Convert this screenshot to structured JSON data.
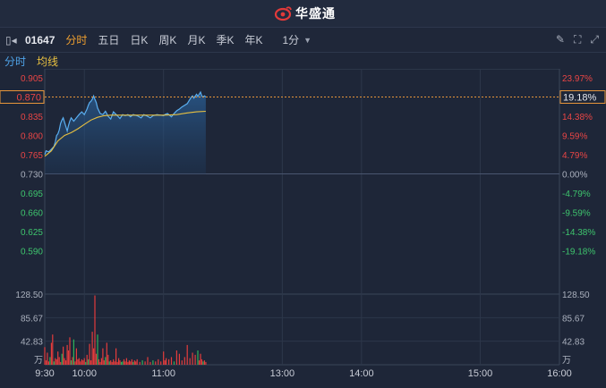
{
  "header": {
    "brand": "华盛通"
  },
  "toolbar": {
    "code": "01647",
    "tabs": [
      "分时",
      "五日",
      "日K",
      "周K",
      "月K",
      "季K",
      "年K"
    ],
    "active_tab": "分时",
    "period": "1分"
  },
  "legend": {
    "price": "分时",
    "avg": "均线"
  },
  "chart_data": {
    "type": "line",
    "prev_close": 0.73,
    "price_axis": [
      "0.905",
      "0.870",
      "0.835",
      "0.800",
      "0.765",
      "0.730",
      "0.695",
      "0.660",
      "0.625",
      "0.590"
    ],
    "price_ticks": [
      0.905,
      0.87,
      0.835,
      0.8,
      0.765,
      0.73,
      0.695,
      0.66,
      0.625,
      0.59
    ],
    "pct_axis": [
      "23.97%",
      "19.18%",
      "14.38%",
      "9.59%",
      "4.79%",
      "0.00%",
      "-4.79%",
      "-9.59%",
      "-14.38%",
      "-19.18%"
    ],
    "current_price_label": "0.870",
    "current_pct_label": "19.18%",
    "ylim": [
      0.555,
      0.905
    ],
    "time_labels": [
      "9:30",
      "10:00",
      "11:00",
      "13:00",
      "14:00",
      "15:00",
      "16:00"
    ],
    "volume_axis": [
      "128.50",
      "85.67",
      "42.83"
    ],
    "volume_ticks": [
      128.5,
      85.67,
      42.83
    ],
    "volume_max": 128.5,
    "volume_unit": "万",
    "price_series": [
      [
        0,
        0.765
      ],
      [
        1,
        0.772
      ],
      [
        3,
        0.77
      ],
      [
        5,
        0.775
      ],
      [
        7,
        0.78
      ],
      [
        8,
        0.788
      ],
      [
        9,
        0.8
      ],
      [
        10,
        0.803
      ],
      [
        11,
        0.81
      ],
      [
        12,
        0.822
      ],
      [
        13,
        0.828
      ],
      [
        14,
        0.832
      ],
      [
        15,
        0.824
      ],
      [
        16,
        0.816
      ],
      [
        17,
        0.808
      ],
      [
        18,
        0.818
      ],
      [
        19,
        0.826
      ],
      [
        20,
        0.832
      ],
      [
        22,
        0.826
      ],
      [
        24,
        0.832
      ],
      [
        26,
        0.838
      ],
      [
        28,
        0.843
      ],
      [
        30,
        0.838
      ],
      [
        32,
        0.848
      ],
      [
        33,
        0.855
      ],
      [
        34,
        0.86
      ],
      [
        35,
        0.862
      ],
      [
        36,
        0.866
      ],
      [
        37,
        0.872
      ],
      [
        38,
        0.866
      ],
      [
        39,
        0.86
      ],
      [
        40,
        0.85
      ],
      [
        42,
        0.84
      ],
      [
        44,
        0.838
      ],
      [
        46,
        0.844
      ],
      [
        48,
        0.835
      ],
      [
        50,
        0.83
      ],
      [
        52,
        0.843
      ],
      [
        55,
        0.836
      ],
      [
        57,
        0.831
      ],
      [
        59,
        0.838
      ],
      [
        61,
        0.836
      ],
      [
        63,
        0.838
      ],
      [
        65,
        0.834
      ],
      [
        67,
        0.838
      ],
      [
        70,
        0.836
      ],
      [
        73,
        0.832
      ],
      [
        75,
        0.838
      ],
      [
        77,
        0.836
      ],
      [
        80,
        0.832
      ],
      [
        82,
        0.836
      ],
      [
        85,
        0.838
      ],
      [
        90,
        0.836
      ],
      [
        91,
        0.838
      ],
      [
        93,
        0.84
      ],
      [
        94,
        0.838
      ],
      [
        96,
        0.834
      ],
      [
        98,
        0.84
      ],
      [
        100,
        0.845
      ],
      [
        102,
        0.848
      ],
      [
        104,
        0.852
      ],
      [
        106,
        0.855
      ],
      [
        108,
        0.858
      ],
      [
        109,
        0.862
      ],
      [
        110,
        0.866
      ],
      [
        111,
        0.87
      ],
      [
        112,
        0.872
      ],
      [
        113,
        0.868
      ],
      [
        114,
        0.872
      ],
      [
        115,
        0.875
      ],
      [
        116,
        0.871
      ],
      [
        117,
        0.875
      ],
      [
        118,
        0.879
      ],
      [
        119,
        0.872
      ],
      [
        120,
        0.87
      ],
      [
        121,
        0.872
      ],
      [
        122,
        0.87
      ]
    ],
    "avg_series": [
      [
        0,
        0.762
      ],
      [
        5,
        0.772
      ],
      [
        10,
        0.79
      ],
      [
        15,
        0.8
      ],
      [
        20,
        0.805
      ],
      [
        25,
        0.812
      ],
      [
        30,
        0.82
      ],
      [
        35,
        0.828
      ],
      [
        40,
        0.833
      ],
      [
        45,
        0.836
      ],
      [
        50,
        0.837
      ],
      [
        60,
        0.837
      ],
      [
        70,
        0.837
      ],
      [
        80,
        0.837
      ],
      [
        90,
        0.837
      ],
      [
        100,
        0.838
      ],
      [
        108,
        0.841
      ],
      [
        115,
        0.843
      ],
      [
        122,
        0.844
      ]
    ],
    "volume_series": [
      [
        0,
        32
      ],
      [
        1,
        8
      ],
      [
        2,
        22
      ],
      [
        3,
        6
      ],
      [
        4,
        14
      ],
      [
        5,
        40
      ],
      [
        6,
        55
      ],
      [
        7,
        6
      ],
      [
        8,
        12
      ],
      [
        9,
        10
      ],
      [
        10,
        24
      ],
      [
        11,
        14
      ],
      [
        12,
        5
      ],
      [
        13,
        20
      ],
      [
        14,
        33
      ],
      [
        15,
        12
      ],
      [
        16,
        8
      ],
      [
        17,
        36
      ],
      [
        18,
        26
      ],
      [
        19,
        50
      ],
      [
        20,
        8
      ],
      [
        21,
        14
      ],
      [
        22,
        46
      ],
      [
        23,
        6
      ],
      [
        24,
        30
      ],
      [
        25,
        10
      ],
      [
        26,
        12
      ],
      [
        27,
        6
      ],
      [
        28,
        10
      ],
      [
        29,
        8
      ],
      [
        30,
        12
      ],
      [
        31,
        5
      ],
      [
        32,
        18
      ],
      [
        33,
        10
      ],
      [
        34,
        38
      ],
      [
        35,
        8
      ],
      [
        36,
        60
      ],
      [
        37,
        30
      ],
      [
        38,
        126
      ],
      [
        39,
        20
      ],
      [
        40,
        55
      ],
      [
        41,
        10
      ],
      [
        42,
        5
      ],
      [
        43,
        12
      ],
      [
        44,
        30
      ],
      [
        45,
        8
      ],
      [
        46,
        14
      ],
      [
        47,
        40
      ],
      [
        48,
        18
      ],
      [
        49,
        6
      ],
      [
        50,
        8
      ],
      [
        51,
        5
      ],
      [
        52,
        10
      ],
      [
        53,
        6
      ],
      [
        54,
        30
      ],
      [
        55,
        5
      ],
      [
        56,
        12
      ],
      [
        57,
        8
      ],
      [
        58,
        5
      ],
      [
        59,
        6
      ],
      [
        60,
        10
      ],
      [
        61,
        6
      ],
      [
        62,
        12
      ],
      [
        63,
        5
      ],
      [
        64,
        8
      ],
      [
        65,
        6
      ],
      [
        66,
        10
      ],
      [
        67,
        5
      ],
      [
        68,
        8
      ],
      [
        69,
        6
      ],
      [
        70,
        10
      ],
      [
        72,
        5
      ],
      [
        74,
        8
      ],
      [
        76,
        6
      ],
      [
        78,
        14
      ],
      [
        80,
        5
      ],
      [
        82,
        8
      ],
      [
        84,
        6
      ],
      [
        86,
        10
      ],
      [
        88,
        6
      ],
      [
        90,
        24
      ],
      [
        91,
        8
      ],
      [
        92,
        12
      ],
      [
        94,
        10
      ],
      [
        96,
        14
      ],
      [
        98,
        6
      ],
      [
        100,
        26
      ],
      [
        102,
        20
      ],
      [
        104,
        8
      ],
      [
        106,
        14
      ],
      [
        108,
        36
      ],
      [
        110,
        12
      ],
      [
        112,
        22
      ],
      [
        114,
        18
      ],
      [
        116,
        26
      ],
      [
        117,
        8
      ],
      [
        118,
        20
      ],
      [
        119,
        10
      ],
      [
        120,
        6
      ],
      [
        121,
        8
      ],
      [
        122,
        5
      ]
    ],
    "volume_colors": [
      "#e43c3c",
      "#2fb35a"
    ]
  }
}
